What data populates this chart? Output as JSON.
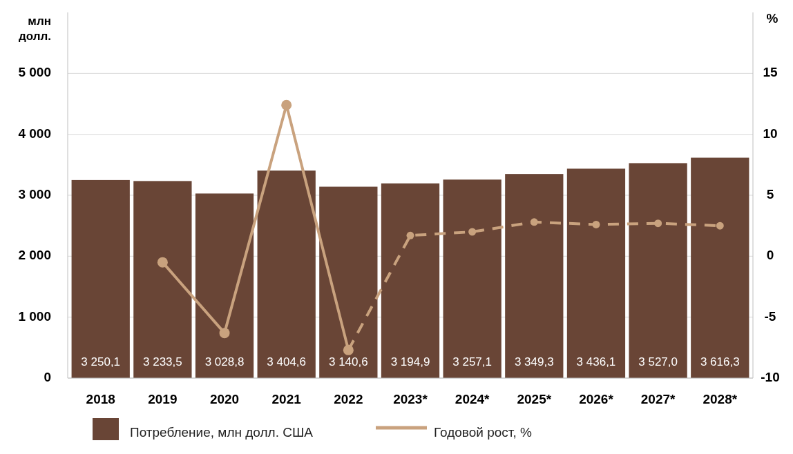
{
  "chart_data": {
    "type": "bar",
    "ylabel": "млн долл.",
    "y2label": "%",
    "categories": [
      "2018",
      "2019",
      "2020",
      "2021",
      "2022",
      "2023*",
      "2024*",
      "2025*",
      "2026*",
      "2027*",
      "2028*"
    ],
    "series": [
      {
        "name": "Потребление, млн долл. США",
        "color": "#694536",
        "values": [
          3250.1,
          3233.5,
          3028.8,
          3404.6,
          3140.6,
          3194.9,
          3257.1,
          3349.3,
          3436.1,
          3527.0,
          3616.3
        ],
        "value_labels": [
          "3 250,1",
          "3 233,5",
          "3 028,8",
          "3 404,6",
          "3 140,6",
          "3 194,9",
          "3 257,1",
          "3 349,3",
          "3 436,1",
          "3 527,0",
          "3 616,3"
        ]
      },
      {
        "name": "Годовой рост, %",
        "type": "line",
        "axis": "y2",
        "color": "#c9a27e",
        "line_style": "solid",
        "marker": "circle",
        "values": [
          null,
          -0.5,
          -6.3,
          12.4,
          -7.7,
          null,
          null,
          null,
          null,
          null,
          null
        ]
      },
      {
        "type": "line",
        "axis": "y2",
        "color": "#c9a27e",
        "line_style": "dashed",
        "marker": "circle",
        "values": [
          null,
          null,
          null,
          null,
          -7.7,
          1.7,
          2.0,
          2.8,
          2.6,
          2.7,
          2.5
        ]
      }
    ],
    "ylim": [
      0,
      6000
    ],
    "yticks": [
      {
        "value": 0,
        "label": "0"
      },
      {
        "value": 1000,
        "label": "1 000"
      },
      {
        "value": 2000,
        "label": "2 000"
      },
      {
        "value": 3000,
        "label": "3 000"
      },
      {
        "value": 4000,
        "label": "4 000"
      },
      {
        "value": 5000,
        "label": "5 000"
      }
    ],
    "y2lim": [
      -10,
      20
    ],
    "y2ticks": [
      -10,
      -5,
      0,
      5,
      10,
      15
    ],
    "grid": "y",
    "legend": "bottom"
  }
}
